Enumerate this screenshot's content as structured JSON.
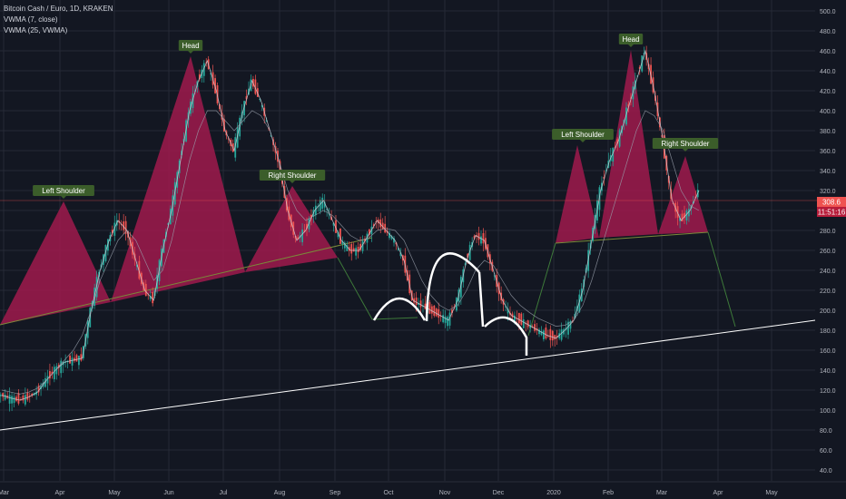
{
  "legend": {
    "title": "Bitcoin Cash / Euro, 1D, KRAKEN",
    "ind1": "VWMA (7, close)",
    "ind2": "VWMA (25, VWMA)"
  },
  "price": {
    "last": "308.6",
    "countdown": "11:51:16"
  },
  "colors": {
    "background": "#131722",
    "grid": "#262a36",
    "up": "#26a69a",
    "down": "#ef5350",
    "pattern_fill": "#a01a4c",
    "label_bg": "#3b5d2a",
    "trendline": "#ffffff",
    "price_line": "#ef5350"
  },
  "chart_data": {
    "type": "line",
    "y_axis": {
      "min": 40,
      "max": 500,
      "ticks": [
        "500.0",
        "480.0",
        "460.0",
        "440.0",
        "420.0",
        "400.0",
        "380.0",
        "360.0",
        "340.0",
        "320.0",
        "300.0",
        "280.0",
        "260.0",
        "240.0",
        "220.0",
        "200.0",
        "180.0",
        "160.0",
        "140.0",
        "120.0",
        "100.0",
        "80.0",
        "60.0",
        "40.0"
      ]
    },
    "x_axis": {
      "ticks": [
        "Mar",
        "Apr",
        "May",
        "Jun",
        "Jul",
        "Aug",
        "Sep",
        "Oct",
        "Nov",
        "Dec",
        "2020",
        "Feb",
        "Mar",
        "Apr",
        "May"
      ]
    },
    "grid": true,
    "annotations": [
      "Left Shoulder",
      "Head",
      "Right Shoulder",
      "Left Shoulder",
      "Head",
      "Right Shoulder"
    ],
    "series": [
      {
        "values": [
          115,
          112,
          110,
          113,
          118,
          130,
          140,
          148,
          150,
          152,
          200,
          240,
          270,
          290,
          280,
          250,
          220,
          210,
          260,
          300,
          350,
          400,
          430,
          450,
          420,
          380,
          360,
          400,
          430,
          410,
          380,
          350,
          300,
          270,
          280,
          300,
          310,
          290,
          270,
          260,
          260,
          275,
          290,
          280,
          270,
          250,
          210,
          205,
          200,
          195,
          190,
          210,
          250,
          275,
          270,
          240,
          210,
          195,
          190,
          185,
          180,
          175,
          172,
          180,
          190,
          220,
          270,
          320,
          350,
          370,
          400,
          430,
          460,
          420,
          370,
          310,
          290,
          300,
          320
        ]
      },
      {
        "values": [
          120,
          118,
          116,
          118,
          122,
          130,
          140,
          150,
          160,
          175,
          200,
          230,
          250,
          270,
          280,
          270,
          250,
          230,
          240,
          270,
          310,
          350,
          380,
          400,
          400,
          390,
          380,
          390,
          400,
          395,
          380,
          350,
          320,
          300,
          290,
          295,
          300,
          295,
          285,
          275,
          270,
          272,
          280,
          282,
          280,
          270,
          250,
          230,
          215,
          205,
          200,
          205,
          220,
          240,
          250,
          245,
          230,
          215,
          205,
          198,
          192,
          188,
          184,
          185,
          190,
          205,
          230,
          260,
          290,
          320,
          350,
          380,
          400,
          395,
          380,
          350,
          320,
          305,
          300
        ]
      }
    ],
    "trendline": {
      "from": [
        0,
        80
      ],
      "to": [
        1,
        190
      ]
    }
  }
}
